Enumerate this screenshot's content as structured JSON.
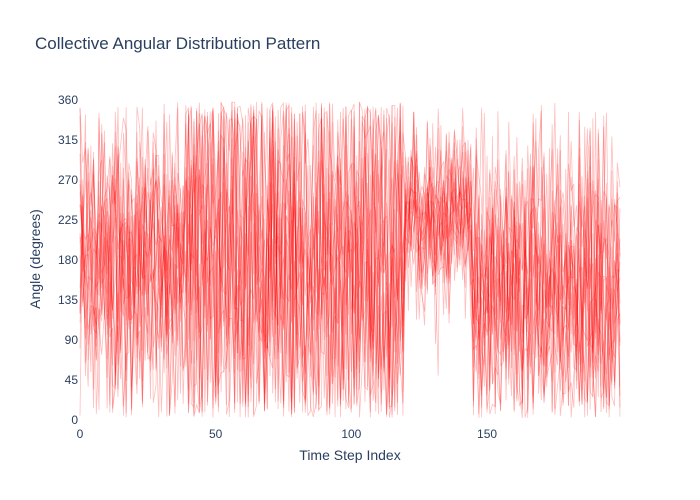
{
  "chart_data": {
    "type": "line",
    "title": "Collective Angular Distribution Pattern",
    "xlabel": "Time Step Index",
    "ylabel": "Angle (degrees)",
    "xlim": [
      0,
      199
    ],
    "ylim": [
      0,
      360
    ],
    "xticks": [
      0,
      50,
      100,
      150
    ],
    "yticks": [
      0,
      45,
      90,
      135,
      180,
      225,
      270,
      315,
      360
    ],
    "series_count": 20,
    "points_per_series": 200,
    "line_color": "#ff0000",
    "line_opacity": 0.25,
    "grid": false,
    "legend": "none",
    "series_summary": [
      {
        "x_range": [
          0,
          40
        ],
        "typical_mean": 180,
        "typical_spread": "wide"
      },
      {
        "x_range": [
          40,
          120
        ],
        "typical_mean": 180,
        "typical_spread": "very wide, near 0-360"
      },
      {
        "x_range": [
          120,
          145
        ],
        "typical_mean": 230,
        "typical_spread": "narrower, 150-300"
      },
      {
        "x_range": [
          145,
          199
        ],
        "typical_mean": 150,
        "typical_spread": "wide, concentrated 60-180"
      }
    ]
  }
}
